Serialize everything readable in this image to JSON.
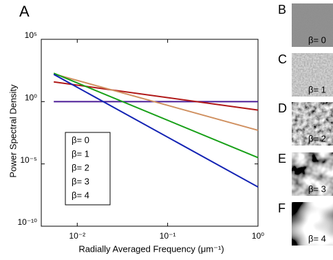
{
  "chart_data": {
    "type": "line",
    "panel_label": "A",
    "x_label": "Radially Averaged Frequency (μm⁻¹)",
    "y_label": "Power Spectral Density",
    "xscale": "log",
    "yscale": "log",
    "xlim": [
      0.004,
      1
    ],
    "ylim": [
      1e-10,
      100000
    ],
    "xticks": [
      {
        "value": 0.01,
        "label": "10⁻²"
      },
      {
        "value": 0.1,
        "label": "10⁻¹"
      },
      {
        "value": 1,
        "label": "10⁰"
      }
    ],
    "yticks": [
      {
        "value": 1e-10,
        "label": "10⁻¹⁰"
      },
      {
        "value": 1e-05,
        "label": "10⁻⁵"
      },
      {
        "value": 1,
        "label": "10⁰"
      },
      {
        "value": 100000,
        "label": "10⁵"
      }
    ],
    "x": [
      0.0055,
      1
    ],
    "series": [
      {
        "name": "β= 0",
        "color": "#4a1a96",
        "values": [
          1,
          1
        ]
      },
      {
        "name": "β= 1",
        "color": "#b01818",
        "values": [
          38,
          0.21
        ]
      },
      {
        "name": "β= 2",
        "color": "#d09060",
        "values": [
          166,
          0.005
        ]
      },
      {
        "name": "β= 3",
        "color": "#18a018",
        "values": [
          190,
          3.2e-05
        ]
      },
      {
        "name": "β= 4",
        "color": "#1424b4",
        "values": [
          154,
          1.4e-07
        ]
      }
    ]
  },
  "panels": [
    {
      "letter": "B",
      "label": "β= 0",
      "label_color": "#1c1c8c"
    },
    {
      "letter": "C",
      "label": "β= 1",
      "label_color": "#c01010"
    },
    {
      "letter": "D",
      "label": "β= 2",
      "label_color": "#f0b080"
    },
    {
      "letter": "E",
      "label": "β= 3",
      "label_color": "#40d040"
    },
    {
      "letter": "F",
      "label": "β= 4",
      "label_color": "#2030f0"
    }
  ]
}
